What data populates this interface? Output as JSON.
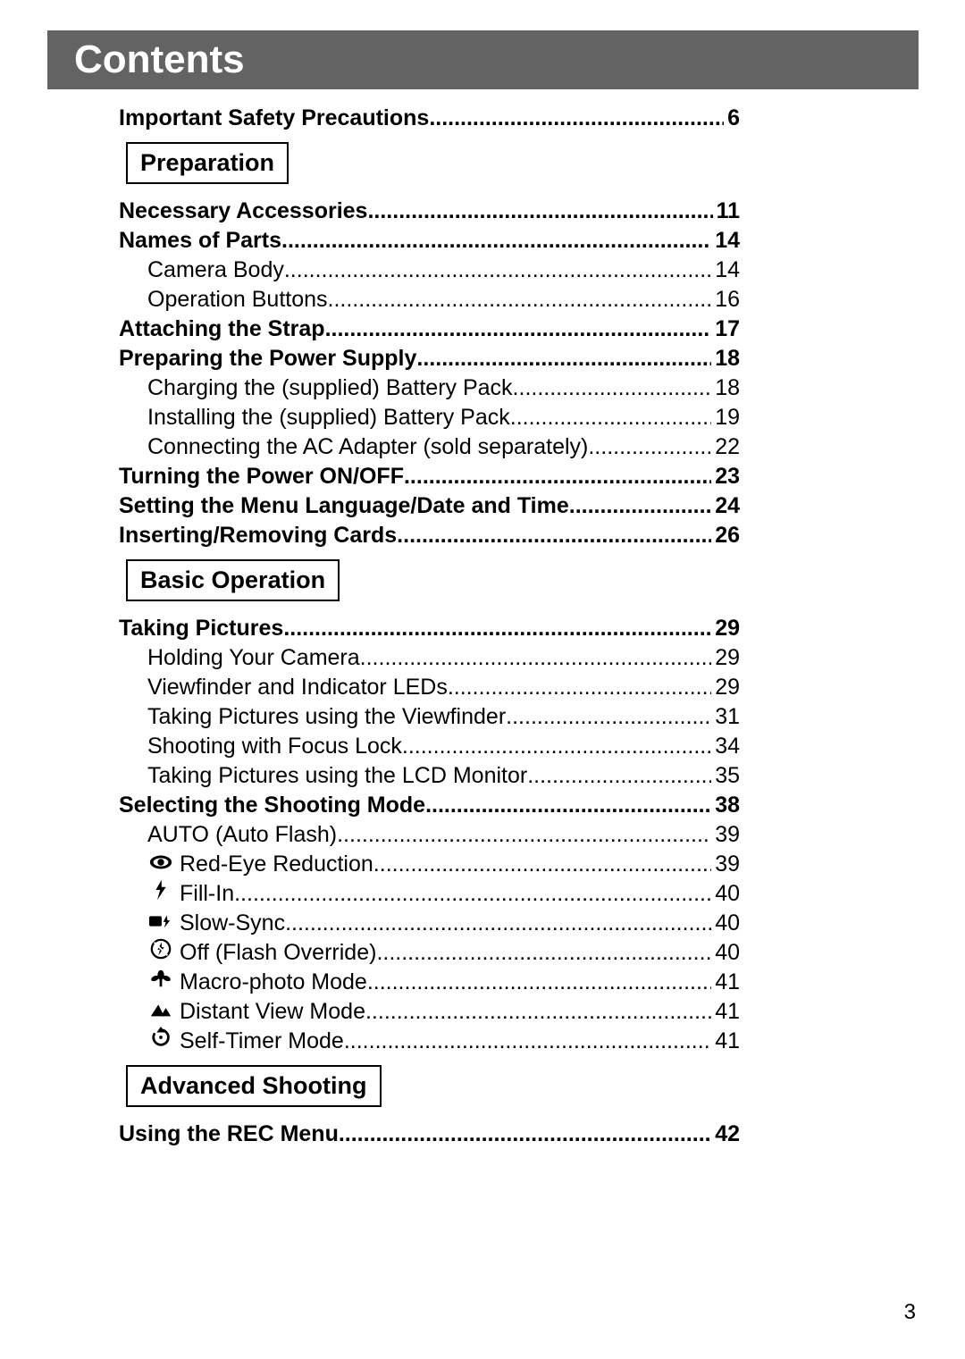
{
  "header": {
    "title": "Contents"
  },
  "footer": {
    "page_number": "3"
  },
  "sections": [
    {
      "before": [
        {
          "label": "Important Safety Precautions",
          "page": "6",
          "bold": true,
          "indent": 0
        }
      ],
      "title": "Preparation",
      "entries": [
        {
          "label": "Necessary Accessories ",
          "page": "11",
          "bold": true,
          "indent": 0
        },
        {
          "label": "Names of Parts ",
          "page": "14",
          "bold": true,
          "indent": 0
        },
        {
          "label": "Camera Body",
          "page": "14",
          "bold": false,
          "indent": 1
        },
        {
          "label": "Operation Buttons ",
          "page": "16",
          "bold": false,
          "indent": 1
        },
        {
          "label": "Attaching the Strap",
          "page": "17",
          "bold": true,
          "indent": 0
        },
        {
          "label": "Preparing the Power Supply ",
          "page": "18",
          "bold": true,
          "indent": 0
        },
        {
          "label": "Charging the (supplied) Battery Pack ",
          "page": "18",
          "bold": false,
          "indent": 1
        },
        {
          "label": "Installing the (supplied) Battery Pack ",
          "page": "19",
          "bold": false,
          "indent": 1
        },
        {
          "label": "Connecting the AC Adapter (sold separately) ",
          "page": "22",
          "bold": false,
          "indent": 1
        },
        {
          "label": "Turning the Power ON/OFF ",
          "page": "23",
          "bold": true,
          "indent": 0
        },
        {
          "label": "Setting the Menu Language/Date and Time ",
          "page": "24",
          "bold": true,
          "indent": 0
        },
        {
          "label": "Inserting/Removing Cards ",
          "page": "26",
          "bold": true,
          "indent": 0
        }
      ]
    },
    {
      "title": "Basic Operation",
      "entries": [
        {
          "label": "Taking Pictures ",
          "page": "29",
          "bold": true,
          "indent": 0
        },
        {
          "label": "Holding Your Camera ",
          "page": "29",
          "bold": false,
          "indent": 1
        },
        {
          "label": "Viewfinder and Indicator LEDs",
          "page": "29",
          "bold": false,
          "indent": 1
        },
        {
          "label": "Taking Pictures using the Viewfinder ",
          "page": "31",
          "bold": false,
          "indent": 1
        },
        {
          "label": "Shooting with Focus Lock ",
          "page": "34",
          "bold": false,
          "indent": 1
        },
        {
          "label": "Taking Pictures using the LCD Monitor ",
          "page": "35",
          "bold": false,
          "indent": 1
        },
        {
          "label": "Selecting the Shooting Mode ",
          "page": "38",
          "bold": true,
          "indent": 0
        },
        {
          "label": "AUTO (Auto Flash) ",
          "page": "39",
          "bold": false,
          "indent": 1
        },
        {
          "label": "Red-Eye Reduction ",
          "page": "39",
          "bold": false,
          "indent": 1,
          "icon": "red-eye-icon"
        },
        {
          "label": "Fill-In ",
          "page": "40",
          "bold": false,
          "indent": 1,
          "icon": "flash-icon"
        },
        {
          "label": "Slow-Sync ",
          "page": "40",
          "bold": false,
          "indent": 1,
          "icon": "slow-sync-icon"
        },
        {
          "label": "Off (Flash Override)",
          "page": "40",
          "bold": false,
          "indent": 1,
          "icon": "flash-off-icon"
        },
        {
          "label": "Macro-photo Mode ",
          "page": "41",
          "bold": false,
          "indent": 1,
          "icon": "macro-icon"
        },
        {
          "label": "Distant View Mode",
          "page": "41",
          "bold": false,
          "indent": 1,
          "icon": "distant-icon"
        },
        {
          "label": "Self-Timer Mode ",
          "page": "41",
          "bold": false,
          "indent": 1,
          "icon": "self-timer-icon"
        }
      ]
    },
    {
      "title": "Advanced Shooting",
      "entries": [
        {
          "label": "Using the REC Menu ",
          "page": "42",
          "bold": true,
          "indent": 0
        }
      ]
    }
  ]
}
